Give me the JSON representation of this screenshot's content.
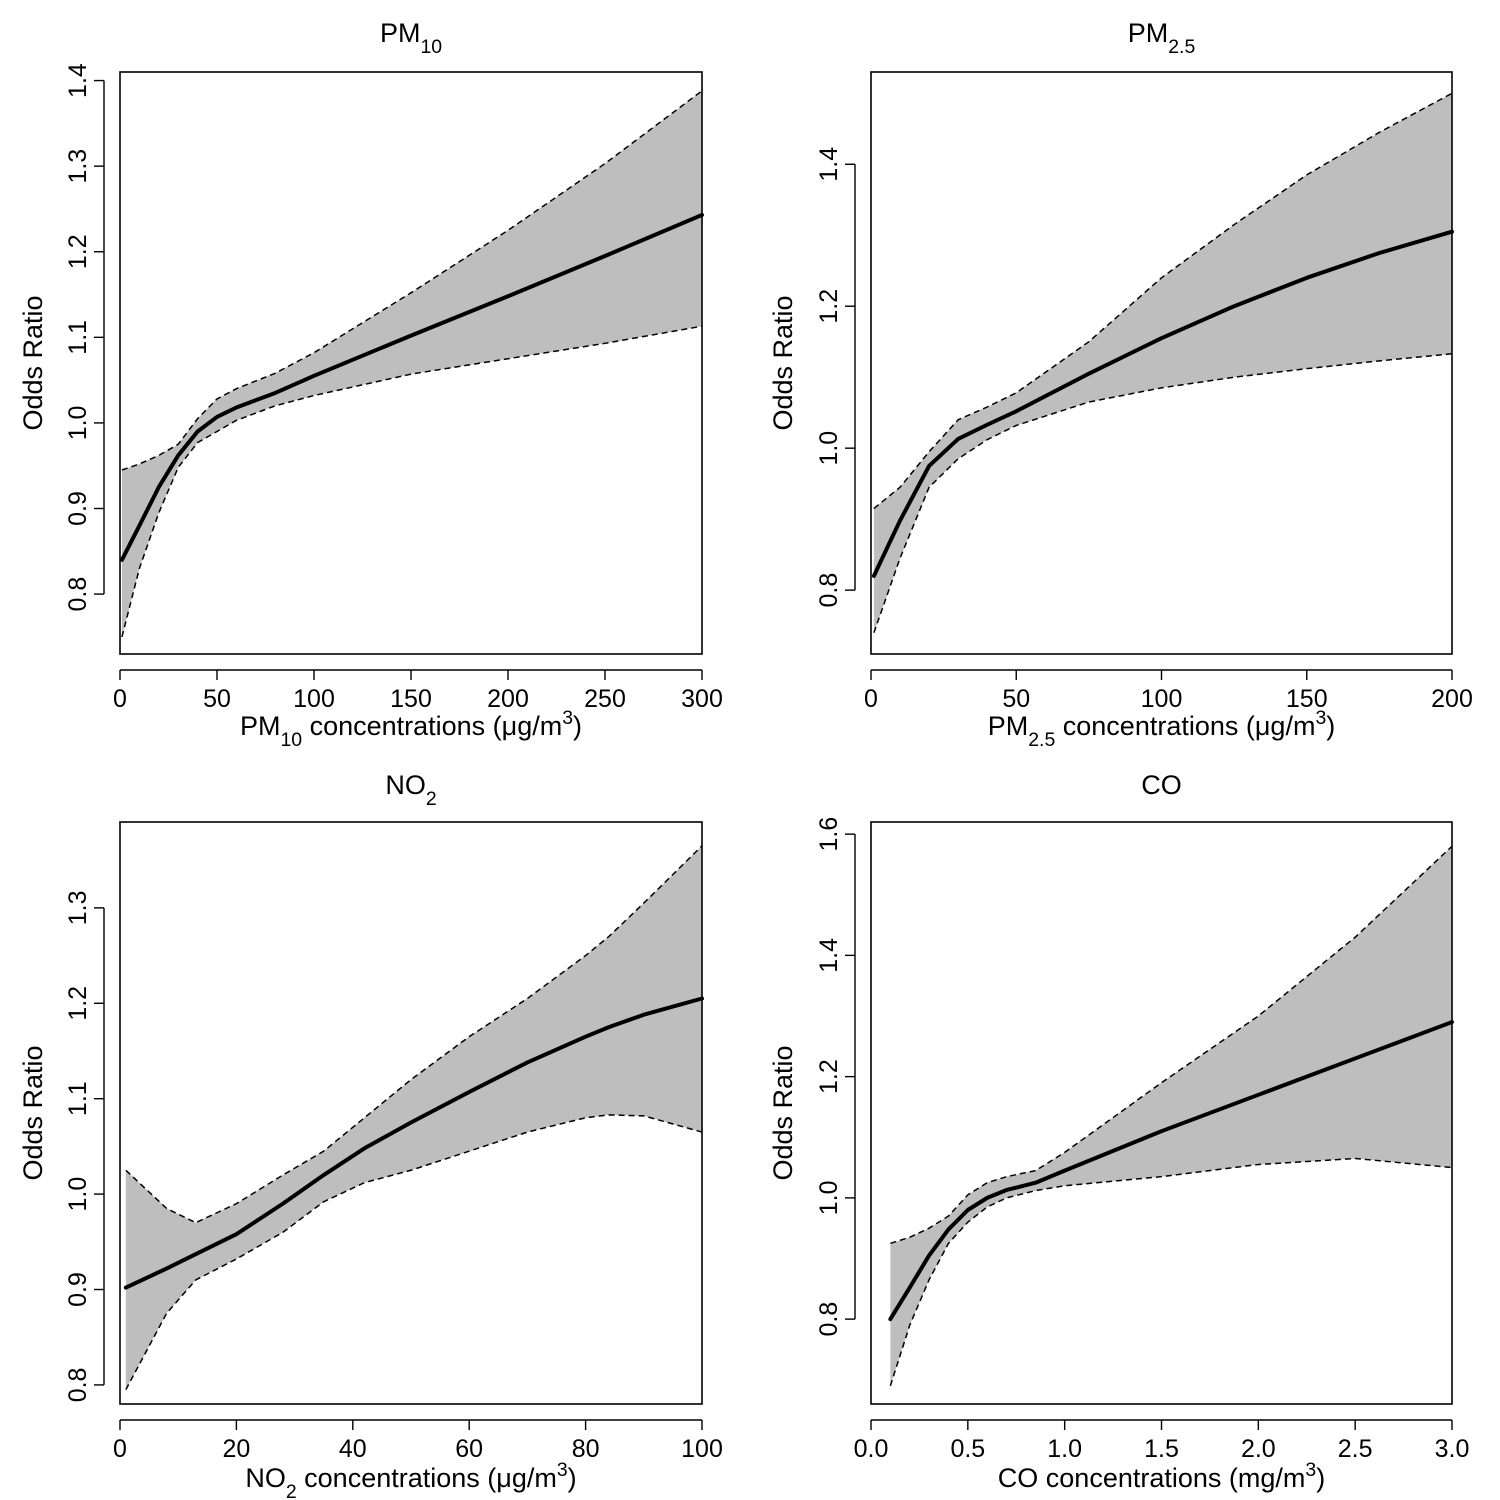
{
  "chart_data": [
    {
      "type": "line",
      "title": {
        "pre": "PM",
        "sub": "10",
        "post": "",
        "sup": ""
      },
      "xlabel": {
        "pre": "PM",
        "sub": "10",
        "post": " concentrations (μg/m",
        "sup": "3",
        "end": ")"
      },
      "ylabel": "Odds Ratio",
      "xlim": [
        0,
        300
      ],
      "ylim": [
        0.73,
        1.41
      ],
      "xticks": [
        {
          "v": 0,
          "label": "0"
        },
        {
          "v": 50,
          "label": "50"
        },
        {
          "v": 100,
          "label": "100"
        },
        {
          "v": 150,
          "label": "150"
        },
        {
          "v": 200,
          "label": "200"
        },
        {
          "v": 250,
          "label": "250"
        },
        {
          "v": 300,
          "label": "300"
        }
      ],
      "yticks": [
        {
          "v": 0.8,
          "label": "0.8"
        },
        {
          "v": 0.9,
          "label": "0.9"
        },
        {
          "v": 1.0,
          "label": "1.0"
        },
        {
          "v": 1.1,
          "label": "1.1"
        },
        {
          "v": 1.2,
          "label": "1.2"
        },
        {
          "v": 1.3,
          "label": "1.3"
        },
        {
          "v": 1.4,
          "label": "1.4"
        }
      ],
      "x": [
        1,
        10,
        20,
        30,
        40,
        50,
        60,
        80,
        100,
        150,
        200,
        250,
        300
      ],
      "fit": [
        0.84,
        0.88,
        0.925,
        0.962,
        0.99,
        1.007,
        1.018,
        1.035,
        1.055,
        1.102,
        1.148,
        1.195,
        1.243
      ],
      "lower": [
        0.75,
        0.83,
        0.895,
        0.948,
        0.977,
        0.99,
        1.003,
        1.02,
        1.032,
        1.057,
        1.075,
        1.093,
        1.113
      ],
      "upper": [
        0.945,
        0.952,
        0.962,
        0.975,
        1.005,
        1.028,
        1.04,
        1.058,
        1.082,
        1.152,
        1.225,
        1.303,
        1.388
      ]
    },
    {
      "type": "line",
      "title": {
        "pre": "PM",
        "sub": "2.5",
        "post": "",
        "sup": ""
      },
      "xlabel": {
        "pre": "PM",
        "sub": "2.5",
        "post": " concentrations (μg/m",
        "sup": "3",
        "end": ")"
      },
      "ylabel": "Odds Ratio",
      "xlim": [
        0,
        200
      ],
      "ylim": [
        0.71,
        1.53
      ],
      "xticks": [
        {
          "v": 0,
          "label": "0"
        },
        {
          "v": 50,
          "label": "50"
        },
        {
          "v": 100,
          "label": "100"
        },
        {
          "v": 150,
          "label": "150"
        },
        {
          "v": 200,
          "label": "200"
        }
      ],
      "yticks": [
        {
          "v": 0.8,
          "label": "0.8"
        },
        {
          "v": 1.0,
          "label": "1.0"
        },
        {
          "v": 1.2,
          "label": "1.2"
        },
        {
          "v": 1.4,
          "label": "1.4"
        }
      ],
      "x": [
        1,
        10,
        20,
        30,
        40,
        50,
        75,
        100,
        125,
        150,
        175,
        200
      ],
      "fit": [
        0.82,
        0.898,
        0.975,
        1.013,
        1.033,
        1.052,
        1.105,
        1.155,
        1.2,
        1.24,
        1.275,
        1.305
      ],
      "lower": [
        0.74,
        0.845,
        0.945,
        0.985,
        1.012,
        1.032,
        1.065,
        1.085,
        1.1,
        1.112,
        1.123,
        1.133
      ],
      "upper": [
        0.915,
        0.945,
        0.995,
        1.04,
        1.058,
        1.078,
        1.15,
        1.24,
        1.315,
        1.385,
        1.445,
        1.5
      ]
    },
    {
      "type": "line",
      "title": {
        "pre": "NO",
        "sub": "2",
        "post": "",
        "sup": ""
      },
      "xlabel": {
        "pre": "NO",
        "sub": "2",
        "post": " concentrations (μg/m",
        "sup": "3",
        "end": ")"
      },
      "ylabel": "Odds Ratio",
      "xlim": [
        0,
        100
      ],
      "ylim": [
        0.78,
        1.39
      ],
      "xticks": [
        {
          "v": 0,
          "label": "0"
        },
        {
          "v": 20,
          "label": "20"
        },
        {
          "v": 40,
          "label": "40"
        },
        {
          "v": 60,
          "label": "60"
        },
        {
          "v": 80,
          "label": "80"
        },
        {
          "v": 100,
          "label": "100"
        }
      ],
      "yticks": [
        {
          "v": 0.8,
          "label": "0.8"
        },
        {
          "v": 0.9,
          "label": "0.9"
        },
        {
          "v": 1.0,
          "label": "1.0"
        },
        {
          "v": 1.1,
          "label": "1.1"
        },
        {
          "v": 1.2,
          "label": "1.2"
        },
        {
          "v": 1.3,
          "label": "1.3"
        }
      ],
      "x": [
        1,
        8,
        13,
        20,
        28,
        35,
        42,
        50,
        60,
        70,
        80,
        84,
        90,
        100
      ],
      "fit": [
        0.902,
        0.922,
        0.937,
        0.958,
        0.99,
        1.02,
        1.048,
        1.075,
        1.107,
        1.138,
        1.165,
        1.175,
        1.188,
        1.205
      ],
      "lower": [
        0.795,
        0.875,
        0.91,
        0.932,
        0.96,
        0.992,
        1.012,
        1.025,
        1.045,
        1.065,
        1.08,
        1.083,
        1.082,
        1.065
      ],
      "upper": [
        1.025,
        0.985,
        0.97,
        0.99,
        1.02,
        1.045,
        1.08,
        1.12,
        1.165,
        1.205,
        1.25,
        1.27,
        1.305,
        1.365
      ]
    },
    {
      "type": "line",
      "title": {
        "pre": "CO",
        "sub": "",
        "post": "",
        "sup": ""
      },
      "xlabel": {
        "pre": "CO concentrations (mg/m",
        "sub": "",
        "post": "",
        "sup": "3",
        "end": ")"
      },
      "ylabel": "Odds Ratio",
      "xlim": [
        0.0,
        3.0
      ],
      "ylim": [
        0.66,
        1.62
      ],
      "xticks": [
        {
          "v": 0.0,
          "label": "0.0"
        },
        {
          "v": 0.5,
          "label": "0.5"
        },
        {
          "v": 1.0,
          "label": "1.0"
        },
        {
          "v": 1.5,
          "label": "1.5"
        },
        {
          "v": 2.0,
          "label": "2.0"
        },
        {
          "v": 2.5,
          "label": "2.5"
        },
        {
          "v": 3.0,
          "label": "3.0"
        }
      ],
      "yticks": [
        {
          "v": 0.8,
          "label": "0.8"
        },
        {
          "v": 1.0,
          "label": "1.0"
        },
        {
          "v": 1.2,
          "label": "1.2"
        },
        {
          "v": 1.4,
          "label": "1.4"
        },
        {
          "v": 1.6,
          "label": "1.6"
        }
      ],
      "x": [
        0.1,
        0.2,
        0.3,
        0.4,
        0.5,
        0.6,
        0.7,
        0.85,
        1.0,
        1.5,
        2.0,
        2.5,
        3.0
      ],
      "fit": [
        0.8,
        0.852,
        0.905,
        0.948,
        0.98,
        1.0,
        1.013,
        1.025,
        1.045,
        1.11,
        1.17,
        1.23,
        1.29
      ],
      "lower": [
        0.69,
        0.79,
        0.865,
        0.925,
        0.96,
        0.985,
        1.0,
        1.012,
        1.02,
        1.035,
        1.055,
        1.065,
        1.05
      ],
      "upper": [
        0.925,
        0.935,
        0.95,
        0.97,
        1.005,
        1.025,
        1.035,
        1.045,
        1.075,
        1.19,
        1.3,
        1.43,
        1.58
      ]
    }
  ]
}
